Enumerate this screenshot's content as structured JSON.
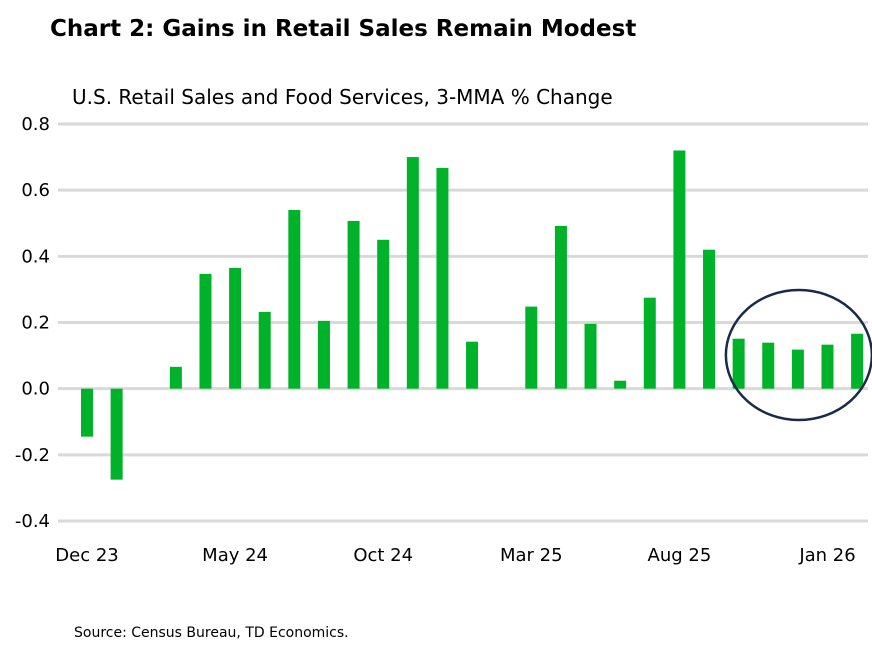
{
  "chart_data": {
    "type": "bar",
    "title": "Chart 2: Gains in Retail Sales Remain Modest",
    "subtitle": "U.S. Retail Sales and Food Services, 3-MMA % Change",
    "source": "Source: Census Bureau,  TD Economics.",
    "categories": [
      "Dec 23",
      "Jan 24",
      "Feb 24",
      "Mar 24",
      "Apr 24",
      "May 24",
      "Jun 24",
      "Jul 24",
      "Aug 24",
      "Sep 24",
      "Oct 24",
      "Nov 24",
      "Dec 24",
      "Jan 25",
      "Feb 25",
      "Mar 25",
      "Apr 25",
      "May 25",
      "Jun 25",
      "Jul 25",
      "Aug 25",
      "Sep 25",
      "Oct 25",
      "Nov 25",
      "Dec 25",
      "Jan 26",
      "Feb 26"
    ],
    "values": [
      -0.145,
      -0.275,
      null,
      0.066,
      0.347,
      0.365,
      0.232,
      0.54,
      0.205,
      0.507,
      0.45,
      0.7,
      0.667,
      0.142,
      null,
      0.248,
      0.492,
      0.196,
      0.024,
      0.275,
      0.72,
      0.42,
      0.151,
      0.139,
      0.118,
      0.133,
      0.166
    ],
    "x_tick_labels": [
      "Dec 23",
      "May 24",
      "Oct 24",
      "Mar 25",
      "Aug 25",
      "Jan 26"
    ],
    "y_tick_labels": [
      "0.8",
      "0.6",
      "0.4",
      "0.2",
      "0.0",
      "-0.2",
      "-0.4"
    ],
    "ylim": [
      -0.4,
      0.8
    ],
    "grid": true,
    "bar_color": "#00b22a",
    "grid_color": "#d9d9d9",
    "annotation": {
      "type": "ellipse",
      "around": [
        "Oct 25",
        "Feb 26"
      ],
      "color": "#1b2a4a"
    }
  }
}
